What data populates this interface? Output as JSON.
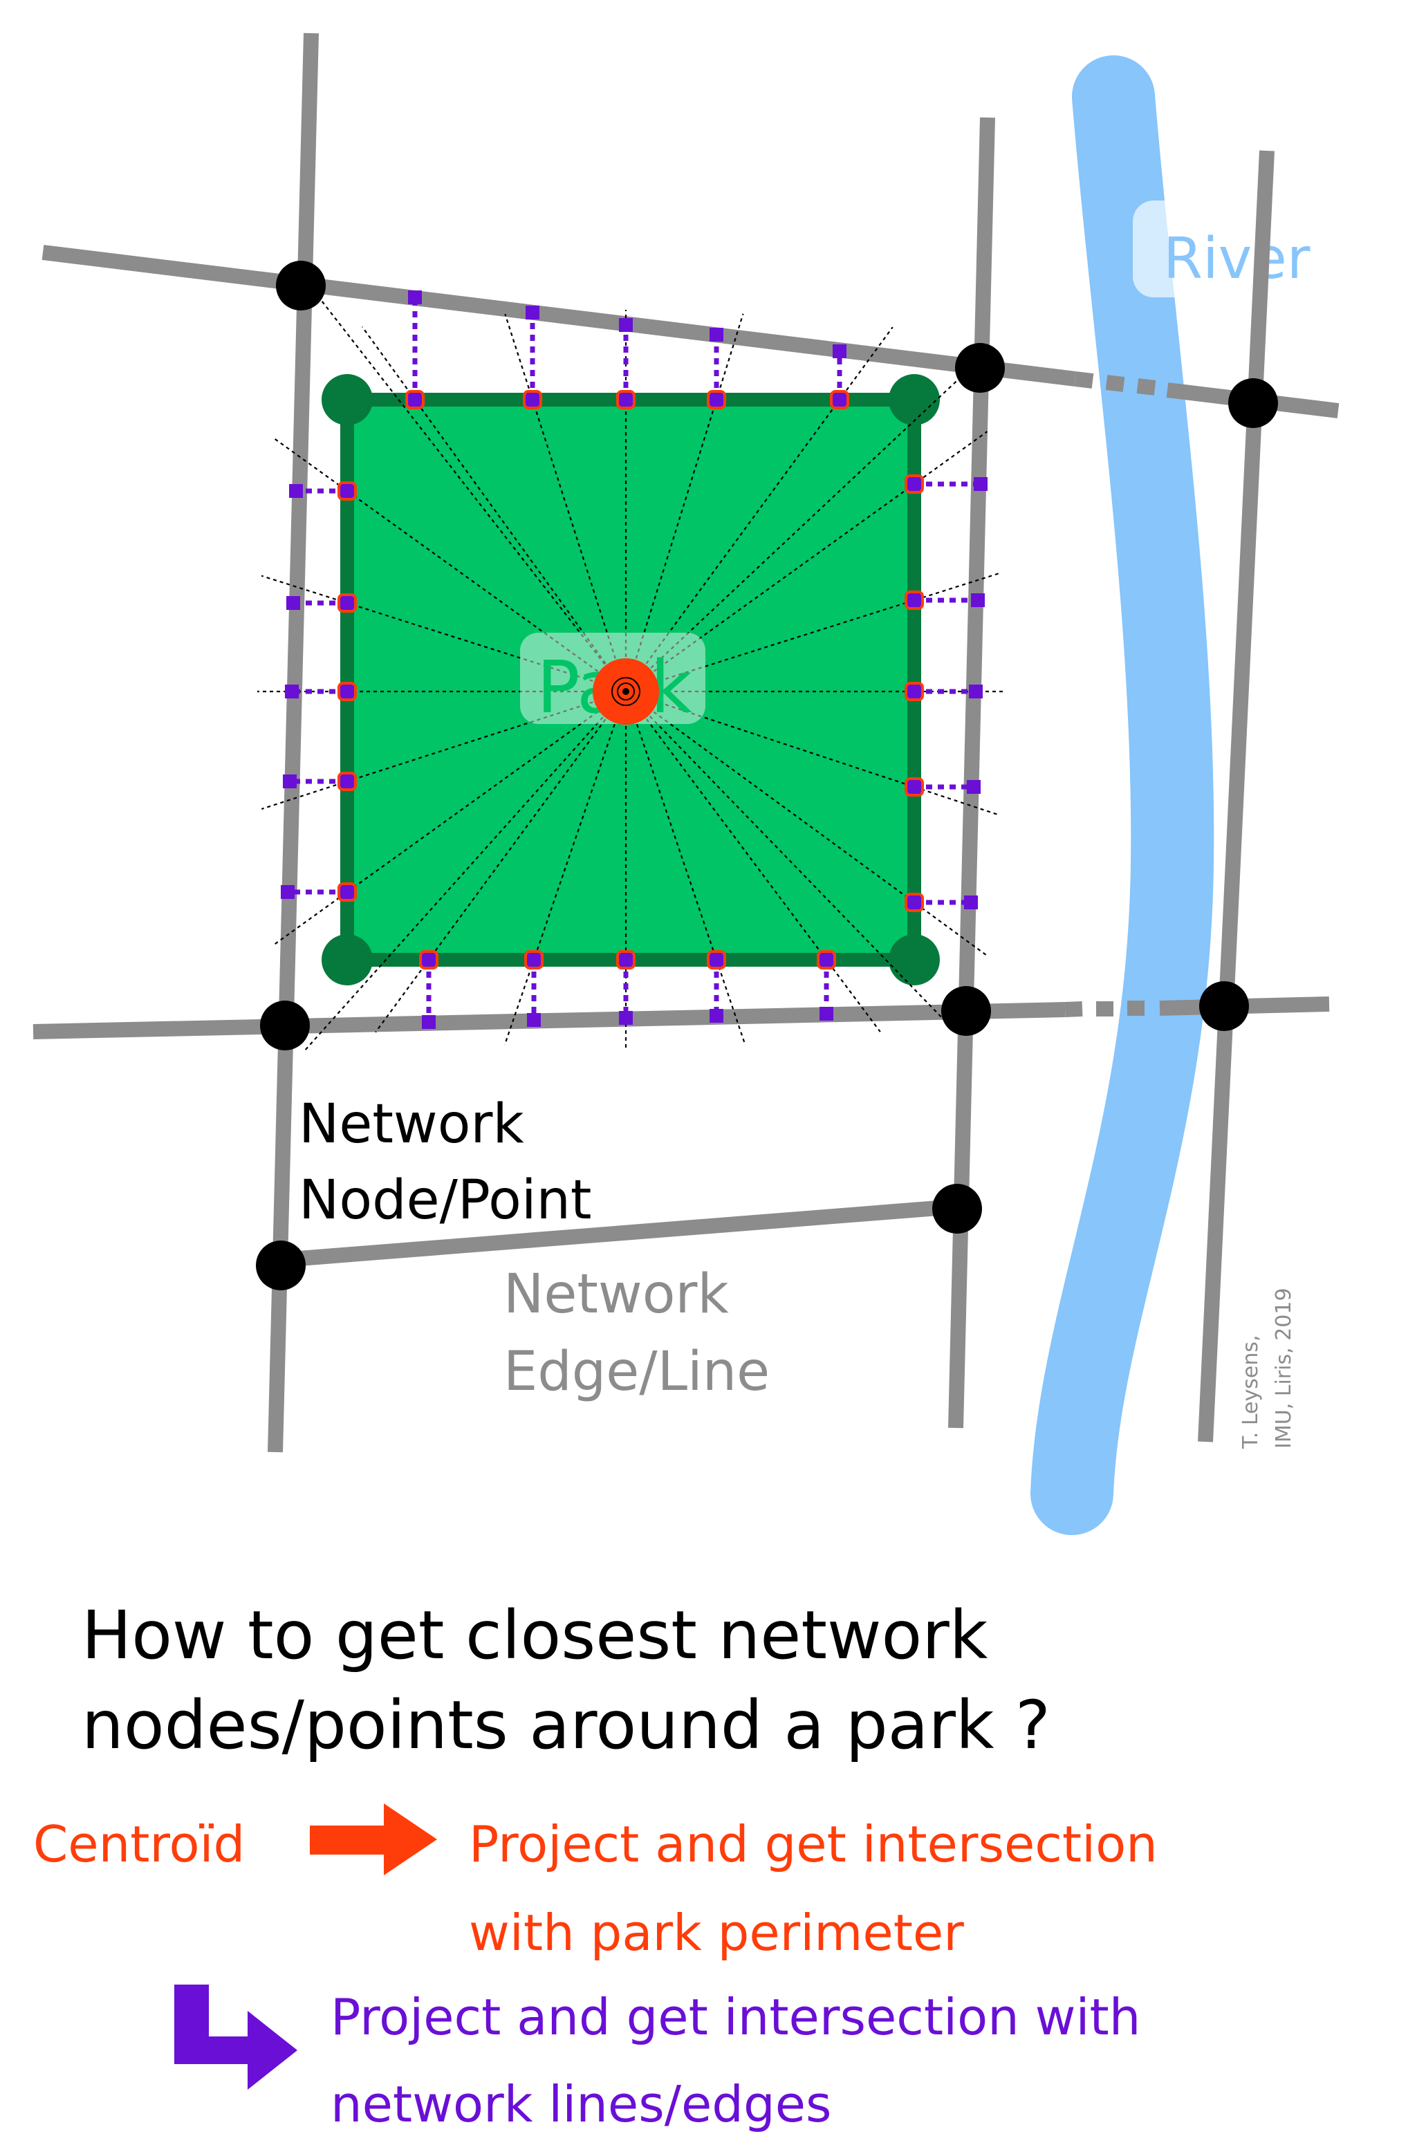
{
  "labels": {
    "river": "River",
    "park": "Park",
    "node_line1": "Network",
    "node_line2": "Node/Point",
    "edge_line1": "Network",
    "edge_line2": "Edge/Line",
    "credit_line1": "T. Leysens,",
    "credit_line2": "IMU, Liris, 2019"
  },
  "question": {
    "line1": "How to get closest network",
    "line2": "nodes/points around a park ?"
  },
  "steps": {
    "centroid": "Centroïd",
    "step1_line1": "Project and get intersection",
    "step1_line2": "with park perimeter",
    "step2_line1": "Project and get intersection with",
    "step2_line2": "network lines/edges"
  },
  "colors": {
    "road": "#8c8c8c",
    "node": "#000000",
    "river": "#87c5fb",
    "park_fill": "#00c466",
    "park_border": "#067a3c",
    "centroid": "#ff3d0a",
    "network_projection": "#6a0fd6",
    "edge_label": "#8c8c8c"
  }
}
